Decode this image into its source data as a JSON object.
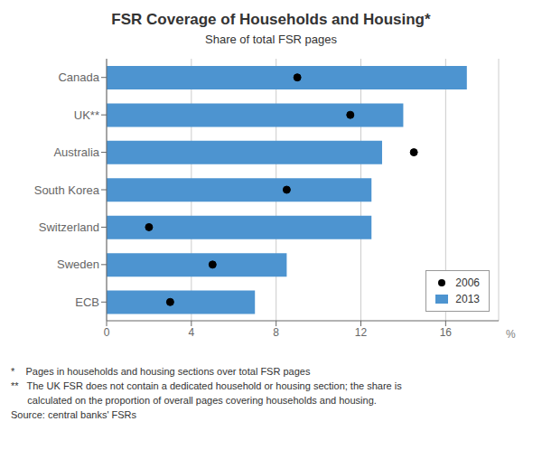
{
  "chart_data": {
    "type": "bar",
    "orientation": "horizontal",
    "title": "FSR Coverage of Households and Housing*",
    "subtitle": "Share of total FSR pages",
    "categories": [
      "Canada",
      "UK**",
      "Australia",
      "South Korea",
      "Switzerland",
      "Sweden",
      "ECB"
    ],
    "series": [
      {
        "name": "2006",
        "type": "scatter",
        "marker": "circle",
        "color": "#000000",
        "values": [
          9.0,
          11.5,
          14.5,
          8.5,
          2.0,
          5.0,
          3.0
        ]
      },
      {
        "name": "2013",
        "type": "bar",
        "color": "#4d94d0",
        "values": [
          17.0,
          14.0,
          13.0,
          12.5,
          12.5,
          8.5,
          7.0
        ]
      }
    ],
    "xlim": [
      0,
      18.5
    ],
    "xticks": [
      0,
      4,
      8,
      12,
      16
    ],
    "xlabel": "%",
    "grid": true,
    "legend": "lower right",
    "footnotes": [
      "*    Pages in households and housing sections over total FSR pages",
      "**   The UK FSR does not contain a dedicated household or housing section; the share is",
      "      calculated on the proportion of overall pages covering households and housing.",
      "Source: central banks' FSRs"
    ]
  }
}
